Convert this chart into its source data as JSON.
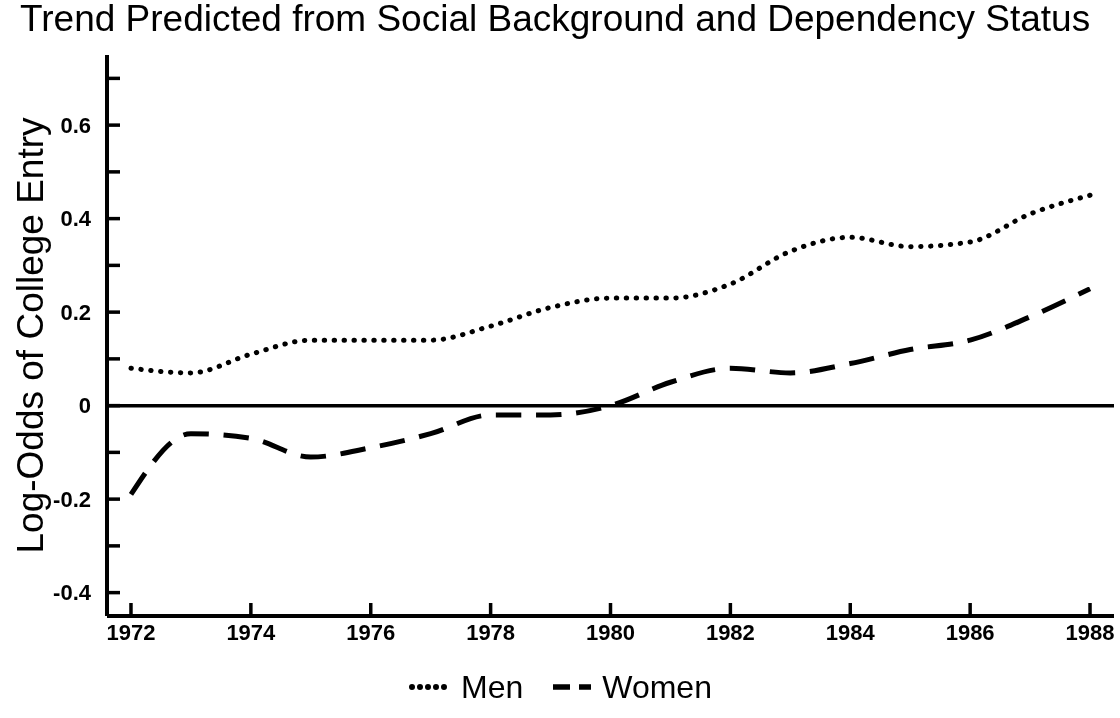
{
  "chart_data": {
    "type": "line",
    "title": "Trend Predicted from Social Background and Dependency Status",
    "ylabel": "Log-Odds of College Entry",
    "x": [
      1972,
      1973,
      1974,
      1975,
      1976,
      1977,
      1978,
      1979,
      1980,
      1981,
      1982,
      1983,
      1984,
      1985,
      1986,
      1987,
      1988
    ],
    "series": [
      {
        "name": "Men",
        "color": "#000000",
        "line_style": "dotted",
        "values": [
          0.08,
          0.07,
          0.11,
          0.14,
          0.14,
          0.14,
          0.17,
          0.21,
          0.23,
          0.23,
          0.26,
          0.33,
          0.36,
          0.34,
          0.35,
          0.41,
          0.45
        ]
      },
      {
        "name": "Women",
        "color": "#000000",
        "line_style": "dashed",
        "values": [
          -0.19,
          -0.06,
          -0.07,
          -0.11,
          -0.09,
          -0.06,
          -0.02,
          -0.02,
          0,
          0.05,
          0.08,
          0.07,
          0.09,
          0.12,
          0.14,
          0.19,
          0.25
        ]
      }
    ],
    "xlim": [
      1971.6,
      1988.4
    ],
    "ylim": [
      -0.45,
      0.75
    ],
    "xticks": [
      1972,
      1974,
      1976,
      1978,
      1980,
      1982,
      1984,
      1986,
      1988
    ],
    "yticks": [
      -0.4,
      {
        "value": -0.3,
        "label": null
      },
      -0.2,
      {
        "value": -0.1,
        "label": null
      },
      0,
      {
        "value": 0.1,
        "label": null
      },
      0.2,
      {
        "value": 0.3,
        "label": null
      },
      0.4,
      {
        "value": 0.5,
        "label": null
      },
      0.6,
      {
        "value": 0.7,
        "label": null
      }
    ],
    "ref_lines": [
      {
        "axis": "y",
        "value": 0
      }
    ],
    "legend": "bottom"
  }
}
